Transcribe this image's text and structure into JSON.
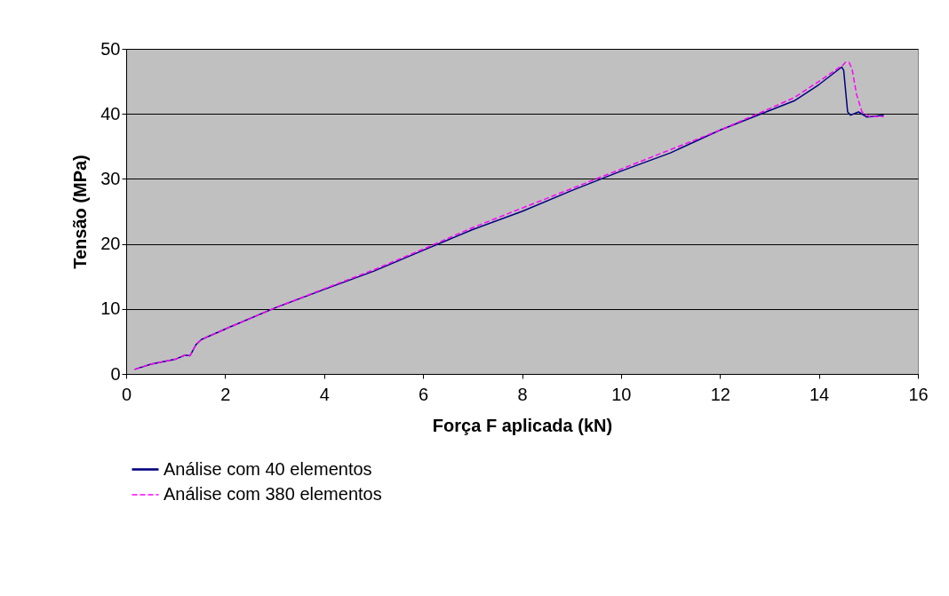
{
  "chart_data": {
    "type": "line",
    "xlabel": "Força F aplicada (kN)",
    "ylabel": "Tensão (MPa)",
    "xlim": [
      0,
      16
    ],
    "xticks": [
      0,
      2,
      4,
      6,
      8,
      10,
      12,
      14,
      16
    ],
    "ylim": [
      0,
      50
    ],
    "yticks": [
      0,
      10,
      20,
      30,
      40,
      50
    ],
    "grid": "y",
    "legend": "bottom",
    "series": [
      {
        "name": "Análise com 40 elementos",
        "color": "#000080",
        "line_style": "solid",
        "x": [
          0.17,
          0.5,
          1.01,
          1.19,
          1.29,
          1.41,
          1.52,
          2.06,
          3.02,
          4,
          5,
          6,
          7,
          8,
          9,
          10,
          11,
          12,
          13,
          13.5,
          14,
          14.46,
          14.5,
          14.58,
          14.64,
          14.8,
          14.97,
          15.31
        ],
        "values": [
          0.7,
          1.5,
          2.3,
          2.9,
          2.8,
          4.5,
          5.3,
          7.1,
          10.2,
          13,
          15.8,
          19,
          22.2,
          25,
          28.2,
          31.2,
          34,
          37.5,
          40.5,
          42,
          44.5,
          47.2,
          46.7,
          40.3,
          39.8,
          40.3,
          39.5,
          39.8
        ]
      },
      {
        "name": "Análise com 380 elementos",
        "color": "#ff00ff",
        "line_style": "dashed",
        "x": [
          0.17,
          0.5,
          1.01,
          1.19,
          1.29,
          1.41,
          1.52,
          2.06,
          3.02,
          4,
          5,
          6,
          7,
          8,
          9,
          10,
          11,
          12,
          13,
          13.5,
          14,
          14.5,
          14.53,
          14.61,
          14.67,
          14.76,
          14.87,
          15.02,
          15.31
        ],
        "values": [
          0.7,
          1.5,
          2.3,
          2.9,
          2.8,
          4.5,
          5.3,
          7.1,
          10.2,
          13.1,
          16,
          19.2,
          22.5,
          25.5,
          28.5,
          31.5,
          34.5,
          37.5,
          40.8,
          42.5,
          45,
          47.6,
          47.9,
          47.9,
          46.9,
          43,
          40.3,
          39.6,
          39.6
        ]
      }
    ]
  }
}
